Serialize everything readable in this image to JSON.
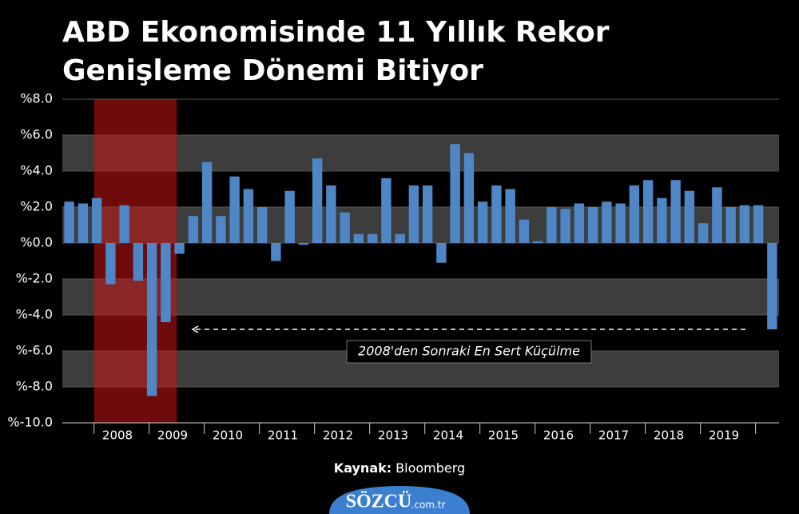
{
  "chart_data": {
    "type": "bar",
    "title": [
      "ABD Ekonomisinde 11 Yıllık Rekor",
      "Genişleme Dönemi Bitiyor"
    ],
    "values": [
      2.3,
      2.2,
      2.5,
      -2.3,
      2.1,
      -2.1,
      -8.5,
      -4.4,
      -0.6,
      1.5,
      4.5,
      1.5,
      3.7,
      3.0,
      2.0,
      -1.0,
      2.9,
      -0.1,
      4.7,
      3.2,
      1.7,
      0.5,
      0.5,
      3.6,
      0.5,
      3.2,
      3.2,
      -1.1,
      5.5,
      5.0,
      2.3,
      3.2,
      3.0,
      1.3,
      0.1,
      2.0,
      1.9,
      2.2,
      2.0,
      2.3,
      2.2,
      3.2,
      3.5,
      2.5,
      3.5,
      2.9,
      1.1,
      3.1,
      2.0,
      2.1,
      2.1,
      -4.8
    ],
    "color": "#4f86c6",
    "year_labels": [
      "2008",
      "2009",
      "2010",
      "2011",
      "2012",
      "2013",
      "2014",
      "2015",
      "2016",
      "2017",
      "2018",
      "2019"
    ],
    "ylim": [
      -10,
      8
    ],
    "yticks": [
      {
        "value": 8,
        "label": "%8.0"
      },
      {
        "value": 6,
        "label": "%6.0"
      },
      {
        "value": 4,
        "label": "%4.0"
      },
      {
        "value": 2,
        "label": "%2.0"
      },
      {
        "value": 0,
        "label": "%0.0"
      },
      {
        "value": -2,
        "label": "%-2.0"
      },
      {
        "value": -4,
        "label": "%-4.0"
      },
      {
        "value": -6,
        "label": "%-6.0"
      },
      {
        "value": -8,
        "label": "%-8.0"
      },
      {
        "value": -10,
        "label": "%-10.0"
      }
    ],
    "grid": true,
    "annotation": "2008'den Sonraki En Sert Küçülme",
    "source_label": "Kaynak:",
    "source": "Bloomberg",
    "logo": "SÖZCÜ",
    "logo_suffix": ".com.tr"
  }
}
